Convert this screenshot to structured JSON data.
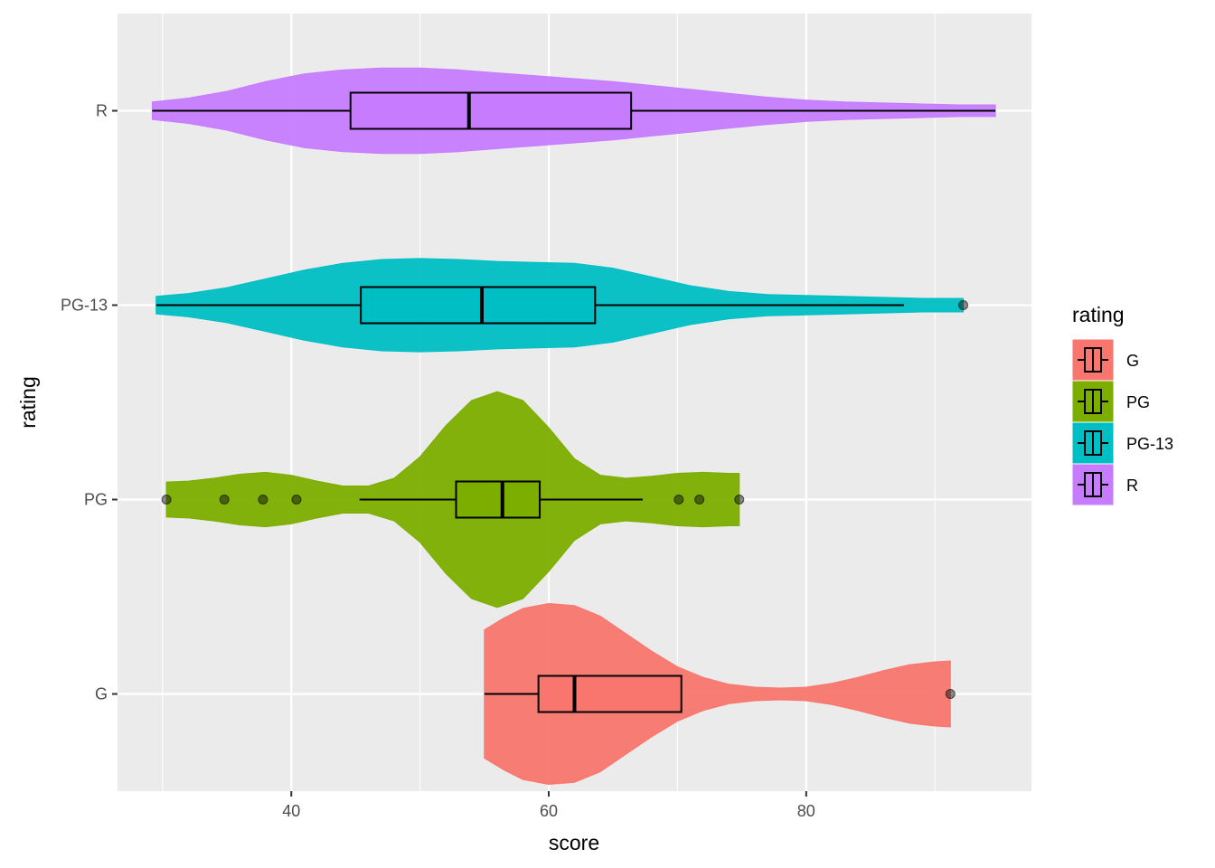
{
  "chart_data": {
    "type": "violin",
    "orientation": "horizontal",
    "title": "",
    "xlabel": "score",
    "ylabel": "rating",
    "xlim": [
      26.5,
      97.5
    ],
    "x_ticks": [
      40,
      60,
      80
    ],
    "x_tick_labels": [
      "40",
      "60",
      "80"
    ],
    "categories": [
      "G",
      "PG",
      "PG-13",
      "R"
    ],
    "grid": true,
    "legend": {
      "title": "rating",
      "position": "right",
      "entries": [
        "G",
        "PG",
        "PG-13",
        "R"
      ]
    },
    "series": [
      {
        "name": "G",
        "color": "#F8766D",
        "violin_range": [
          55.0,
          91.2
        ],
        "box": {
          "whisker_low": 55.0,
          "q1": 59.2,
          "median": 62.0,
          "q3": 70.3,
          "whisker_high": 70.3
        },
        "outliers": [
          91.2
        ],
        "density": [
          [
            55.0,
            0.66
          ],
          [
            56.5,
            0.78
          ],
          [
            58.0,
            0.88
          ],
          [
            60.0,
            0.93
          ],
          [
            62.0,
            0.91
          ],
          [
            64.0,
            0.8
          ],
          [
            66.0,
            0.62
          ],
          [
            68.0,
            0.44
          ],
          [
            70.0,
            0.28
          ],
          [
            72.0,
            0.17
          ],
          [
            74.0,
            0.1
          ],
          [
            76.0,
            0.07
          ],
          [
            78.0,
            0.06
          ],
          [
            80.0,
            0.07
          ],
          [
            82.0,
            0.11
          ],
          [
            84.0,
            0.17
          ],
          [
            86.0,
            0.24
          ],
          [
            88.0,
            0.3
          ],
          [
            90.0,
            0.33
          ],
          [
            91.2,
            0.34
          ]
        ]
      },
      {
        "name": "PG",
        "color": "#7CAE00",
        "violin_range": [
          30.3,
          74.8
        ],
        "box": {
          "whisker_low": 45.3,
          "q1": 52.8,
          "median": 56.4,
          "q3": 59.3,
          "whisker_high": 67.3
        },
        "outliers": [
          30.3,
          34.8,
          37.8,
          40.4,
          70.1,
          71.7,
          74.8
        ],
        "density": [
          [
            30.3,
            0.18
          ],
          [
            32.0,
            0.19
          ],
          [
            34.0,
            0.22
          ],
          [
            36.0,
            0.26
          ],
          [
            38.0,
            0.28
          ],
          [
            40.0,
            0.25
          ],
          [
            42.0,
            0.19
          ],
          [
            44.0,
            0.14
          ],
          [
            46.0,
            0.14
          ],
          [
            48.0,
            0.22
          ],
          [
            50.0,
            0.44
          ],
          [
            52.0,
            0.76
          ],
          [
            54.0,
            1.02
          ],
          [
            56.0,
            1.11
          ],
          [
            58.0,
            1.02
          ],
          [
            60.0,
            0.74
          ],
          [
            62.0,
            0.42
          ],
          [
            64.0,
            0.25
          ],
          [
            66.0,
            0.22
          ],
          [
            68.0,
            0.24
          ],
          [
            70.0,
            0.27
          ],
          [
            72.0,
            0.28
          ],
          [
            74.0,
            0.27
          ],
          [
            74.8,
            0.27
          ]
        ]
      },
      {
        "name": "PG-13",
        "color": "#00BFC4",
        "violin_range": [
          29.5,
          92.2
        ],
        "box": {
          "whisker_low": 29.5,
          "q1": 45.4,
          "median": 54.8,
          "q3": 63.6,
          "whisker_high": 87.6
        },
        "outliers": [
          92.2
        ],
        "density": [
          [
            29.5,
            0.09
          ],
          [
            32.0,
            0.12
          ],
          [
            35.0,
            0.18
          ],
          [
            38.0,
            0.27
          ],
          [
            41.0,
            0.36
          ],
          [
            44.0,
            0.43
          ],
          [
            47.0,
            0.47
          ],
          [
            50.0,
            0.48
          ],
          [
            53.0,
            0.47
          ],
          [
            56.0,
            0.45
          ],
          [
            59.0,
            0.44
          ],
          [
            62.0,
            0.43
          ],
          [
            65.0,
            0.38
          ],
          [
            68.0,
            0.29
          ],
          [
            71.0,
            0.2
          ],
          [
            74.0,
            0.14
          ],
          [
            77.0,
            0.11
          ],
          [
            80.0,
            0.1
          ],
          [
            83.0,
            0.09
          ],
          [
            86.0,
            0.08
          ],
          [
            89.0,
            0.07
          ],
          [
            92.2,
            0.07
          ]
        ]
      },
      {
        "name": "R",
        "color": "#C77CFF",
        "violin_range": [
          29.2,
          94.7
        ],
        "box": {
          "whisker_low": 29.2,
          "q1": 44.6,
          "median": 53.8,
          "q3": 66.4,
          "whisker_high": 94.7
        },
        "outliers": [],
        "density": [
          [
            29.2,
            0.09
          ],
          [
            32.0,
            0.13
          ],
          [
            35.0,
            0.2
          ],
          [
            38.0,
            0.3
          ],
          [
            41.0,
            0.38
          ],
          [
            44.0,
            0.42
          ],
          [
            47.0,
            0.44
          ],
          [
            50.0,
            0.44
          ],
          [
            53.0,
            0.42
          ],
          [
            56.0,
            0.39
          ],
          [
            59.0,
            0.36
          ],
          [
            62.0,
            0.33
          ],
          [
            65.0,
            0.3
          ],
          [
            68.0,
            0.26
          ],
          [
            71.0,
            0.22
          ],
          [
            74.0,
            0.18
          ],
          [
            77.0,
            0.14
          ],
          [
            80.0,
            0.11
          ],
          [
            83.0,
            0.09
          ],
          [
            86.0,
            0.08
          ],
          [
            89.0,
            0.07
          ],
          [
            92.0,
            0.06
          ],
          [
            94.7,
            0.06
          ]
        ]
      }
    ]
  }
}
